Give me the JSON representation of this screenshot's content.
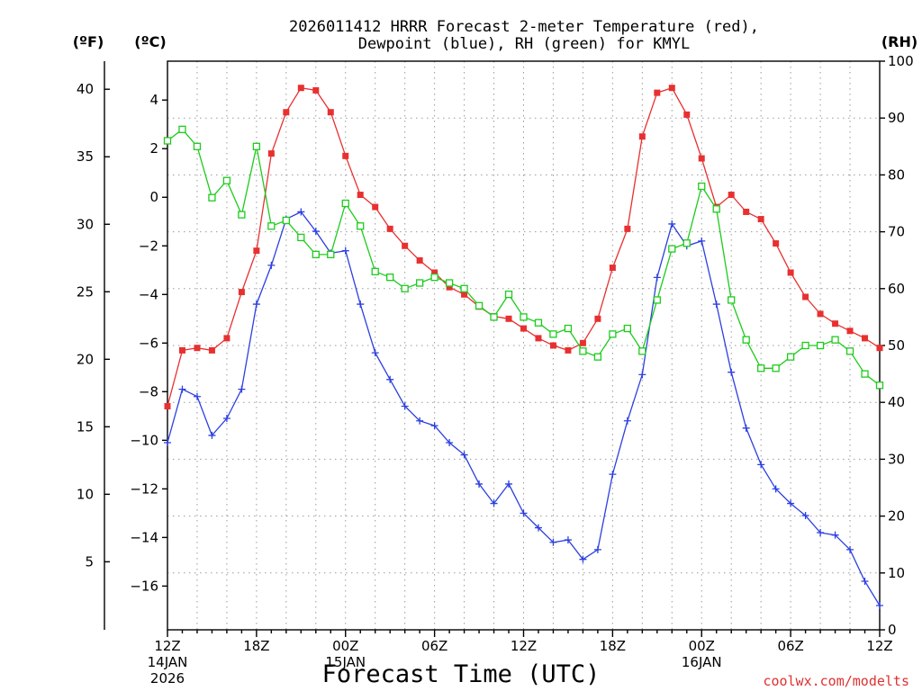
{
  "chart_data": {
    "type": "line",
    "title_line1": "2026011412 HRRR Forecast 2-meter Temperature (red),",
    "title_line2": "Dewpoint (blue), RH (green) for KMYL",
    "xlabel": "Forecast Time (UTC)",
    "credit": "coolwx.com/modelts",
    "left_outer_axis_label": "(ºF)",
    "left_inner_axis_label": "(ºC)",
    "right_axis_label": "(RH)",
    "x_hours_range": [
      0,
      48
    ],
    "x_ticks": [
      {
        "hour": 0,
        "label": "12Z",
        "label2": "14JAN",
        "label3": "2026"
      },
      {
        "hour": 6,
        "label": "18Z",
        "label2": "",
        "label3": ""
      },
      {
        "hour": 12,
        "label": "00Z",
        "label2": "15JAN",
        "label3": ""
      },
      {
        "hour": 18,
        "label": "06Z",
        "label2": "",
        "label3": ""
      },
      {
        "hour": 24,
        "label": "12Z",
        "label2": "",
        "label3": ""
      },
      {
        "hour": 30,
        "label": "18Z",
        "label2": "",
        "label3": ""
      },
      {
        "hour": 36,
        "label": "00Z",
        "label2": "16JAN",
        "label3": ""
      },
      {
        "hour": 42,
        "label": "06Z",
        "label2": "",
        "label3": ""
      },
      {
        "hour": 48,
        "label": "12Z",
        "label2": "",
        "label3": ""
      }
    ],
    "celsius_ylim": [
      -17.8,
      5.6
    ],
    "celsius_ticks": [
      "4",
      "2",
      "0",
      "−2",
      "−4",
      "−6",
      "−8",
      "−10",
      "−12",
      "−14",
      "−16"
    ],
    "fahrenheit_ticks": [
      "40",
      "35",
      "30",
      "25",
      "20",
      "15",
      "10",
      "5"
    ],
    "rh_ylim": [
      0,
      100
    ],
    "rh_ticks": [
      "100",
      "90",
      "80",
      "70",
      "60",
      "50",
      "40",
      "30",
      "20",
      "10",
      "0"
    ],
    "grid": true,
    "series": [
      {
        "name": "2-meter Temperature",
        "unit": "°C",
        "color": "#e83030",
        "marker": "filled-square",
        "x": [
          0,
          1,
          2,
          3,
          4,
          5,
          6,
          7,
          8,
          9,
          10,
          11,
          12,
          13,
          14,
          15,
          16,
          17,
          18,
          19,
          20,
          21,
          22,
          23,
          24,
          25,
          26,
          27,
          28,
          29,
          30,
          31,
          32,
          33,
          34,
          35,
          36,
          37,
          38,
          39,
          40,
          41,
          42,
          43,
          44,
          45,
          46,
          47,
          48
        ],
        "values": [
          -8.6,
          -6.3,
          -6.2,
          -6.3,
          -5.8,
          -3.9,
          -2.2,
          1.8,
          3.5,
          4.5,
          4.4,
          3.5,
          1.7,
          0.1,
          -0.4,
          -1.3,
          -2.0,
          -2.6,
          -3.1,
          -3.7,
          -4.0,
          -4.5,
          -4.9,
          -5.0,
          -5.4,
          -5.8,
          -6.1,
          -6.3,
          -6.0,
          -5.0,
          -2.9,
          -1.3,
          2.5,
          4.3,
          4.5,
          3.4,
          1.6,
          -0.4,
          0.1,
          -0.6,
          -0.9,
          -1.9,
          -3.1,
          -4.1,
          -4.8,
          -5.2,
          -5.5,
          -5.8,
          -6.2
        ]
      },
      {
        "name": "Dewpoint",
        "unit": "°C",
        "color": "#2c3fe0",
        "marker": "plus",
        "x": [
          0,
          1,
          2,
          3,
          4,
          5,
          6,
          7,
          8,
          9,
          10,
          11,
          12,
          13,
          14,
          15,
          16,
          17,
          18,
          19,
          20,
          21,
          22,
          23,
          24,
          25,
          26,
          27,
          28,
          29,
          30,
          31,
          32,
          33,
          34,
          35,
          36,
          37,
          38,
          39,
          40,
          41,
          42,
          43,
          44,
          45,
          46,
          47,
          48
        ],
        "values": [
          -10.1,
          -7.9,
          -8.2,
          -9.8,
          -9.1,
          -7.9,
          -4.4,
          -2.8,
          -0.9,
          -0.6,
          -1.4,
          -2.3,
          -2.2,
          -4.4,
          -6.4,
          -7.5,
          -8.6,
          -9.2,
          -9.4,
          -10.1,
          -10.6,
          -11.8,
          -12.6,
          -11.8,
          -13.0,
          -13.6,
          -14.2,
          -14.1,
          -14.9,
          -14.5,
          -11.4,
          -9.2,
          -7.3,
          -3.3,
          -1.1,
          -2.0,
          -1.8,
          -4.4,
          -7.2,
          -9.5,
          -11.0,
          -12.0,
          -12.6,
          -13.1,
          -13.8,
          -13.9,
          -14.5,
          -15.8,
          -16.8
        ]
      },
      {
        "name": "RH",
        "unit": "%",
        "color": "#1ccc1c",
        "marker": "open-square",
        "x": [
          0,
          1,
          2,
          3,
          4,
          5,
          6,
          7,
          8,
          9,
          10,
          11,
          12,
          13,
          14,
          15,
          16,
          17,
          18,
          19,
          20,
          21,
          22,
          23,
          24,
          25,
          26,
          27,
          28,
          29,
          30,
          31,
          32,
          33,
          34,
          35,
          36,
          37,
          38,
          39,
          40,
          41,
          42,
          43,
          44,
          45,
          46,
          47,
          48
        ],
        "values": [
          86,
          88,
          85,
          76,
          79,
          73,
          85,
          71,
          72,
          69,
          66,
          66,
          75,
          71,
          63,
          62,
          60,
          61,
          62,
          61,
          60,
          57,
          55,
          59,
          55,
          54,
          52,
          53,
          49,
          48,
          52,
          53,
          49,
          58,
          67,
          68,
          78,
          74,
          58,
          51,
          46,
          46,
          48,
          50,
          50,
          51,
          49,
          45,
          43
        ]
      }
    ]
  }
}
